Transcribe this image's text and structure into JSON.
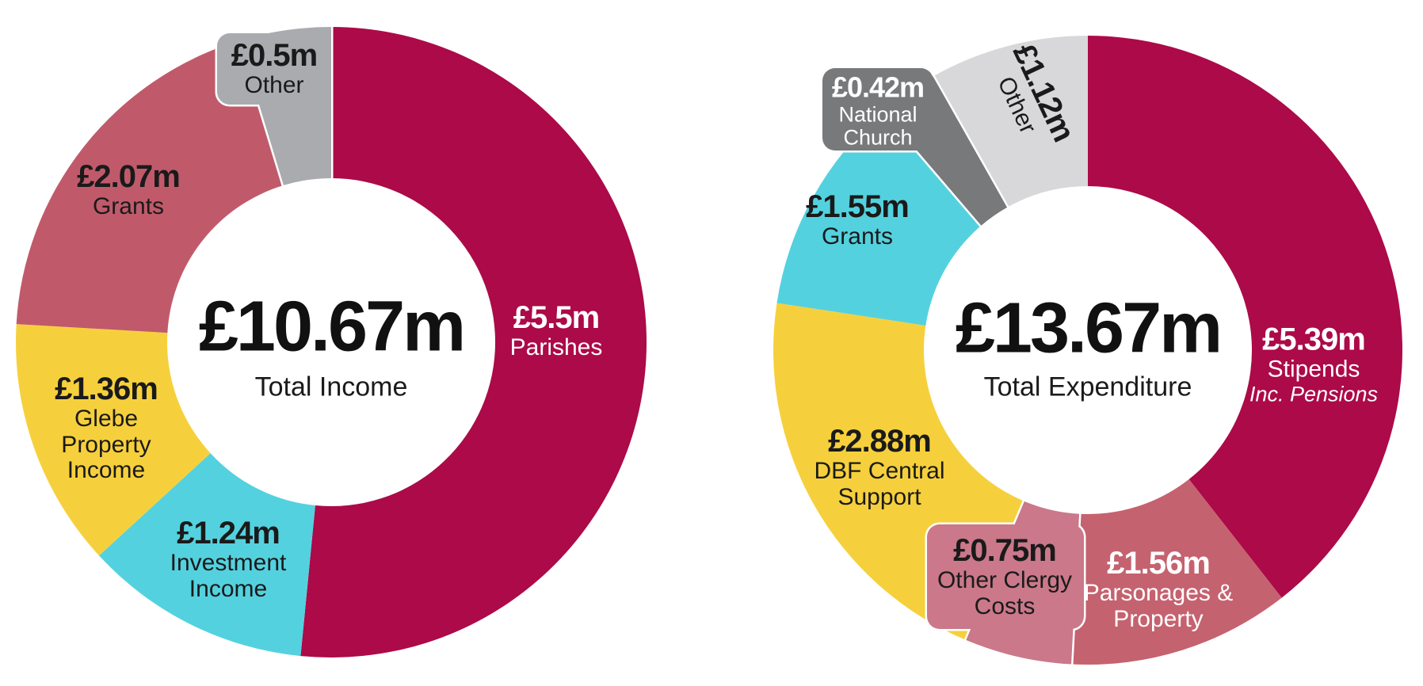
{
  "page": {
    "background": "#FFFFFF"
  },
  "colors": {
    "crimson": "#AC0A48",
    "rose": "#C05A6A",
    "parsonages_rose": "#C5626F",
    "clergy_pink": "#CA788A",
    "yellow": "#F6D03C",
    "cyan": "#54D1DE",
    "gray_medium": "#A9ABAE",
    "gray_dark": "#77797B",
    "gray_light": "#D8D8DA",
    "text_dark": "#1A1A1A",
    "white": "#FFFFFF"
  },
  "chart_data": [
    {
      "type": "pie",
      "subtype": "donut",
      "id": "income-donut",
      "title": "Total Income",
      "center_value": "£10.67m",
      "total": 10.67,
      "units": "£m",
      "legend_position": "on-segment",
      "segments": [
        {
          "label": "Parishes",
          "value": 5.5,
          "display": "£5.5m",
          "color": "#AC0A48",
          "label_color": "#FFFFFF",
          "callout": false,
          "sublines": [
            "Parishes"
          ]
        },
        {
          "label": "Investment Income",
          "value": 1.24,
          "display": "£1.24m",
          "color": "#54D1DE",
          "label_color": "#1A1A1A",
          "callout": false,
          "sublines": [
            "Investment",
            "Income"
          ]
        },
        {
          "label": "Glebe Property Income",
          "value": 1.36,
          "display": "£1.36m",
          "color": "#F6D03C",
          "label_color": "#1A1A1A",
          "callout": false,
          "sublines": [
            "Glebe",
            "Property",
            "Income"
          ]
        },
        {
          "label": "Grants",
          "value": 2.07,
          "display": "£2.07m",
          "color": "#C05A6A",
          "label_color": "#1A1A1A",
          "callout": false,
          "sublines": [
            "Grants"
          ]
        },
        {
          "label": "Other",
          "value": 0.5,
          "display": "£0.5m",
          "color": "#A9ABAE",
          "label_color": "#1A1A1A",
          "callout": true,
          "sublines": [
            "Other"
          ]
        }
      ]
    },
    {
      "type": "pie",
      "subtype": "donut",
      "id": "expenditure-donut",
      "title": "Total Expenditure",
      "center_value": "£13.67m",
      "total": 13.67,
      "units": "£m",
      "legend_position": "on-segment",
      "segments": [
        {
          "label": "Stipends",
          "value": 5.39,
          "display": "£5.39m",
          "color": "#AC0A48",
          "label_color": "#FFFFFF",
          "callout": false,
          "sublines": [
            "Stipends"
          ],
          "italic_subline": "Inc. Pensions"
        },
        {
          "label": "Parsonages & Property",
          "value": 1.56,
          "display": "£1.56m",
          "color": "#C5626F",
          "label_color": "#FFFFFF",
          "callout": false,
          "sublines": [
            "Parsonages &",
            "Property"
          ]
        },
        {
          "label": "Other Clergy Costs",
          "value": 0.75,
          "display": "£0.75m",
          "color": "#CA788A",
          "label_color": "#1A1A1A",
          "callout": true,
          "sublines": [
            "Other Clergy",
            "Costs"
          ]
        },
        {
          "label": "DBF Central Support",
          "value": 2.88,
          "display": "£2.88m",
          "color": "#F6D03C",
          "label_color": "#1A1A1A",
          "callout": false,
          "sublines": [
            "DBF Central",
            "Support"
          ]
        },
        {
          "label": "Grants",
          "value": 1.55,
          "display": "£1.55m",
          "color": "#54D1DE",
          "label_color": "#1A1A1A",
          "callout": false,
          "sublines": [
            "Grants"
          ]
        },
        {
          "label": "National Church",
          "value": 0.42,
          "display": "£0.42m",
          "color": "#77797B",
          "label_color": "#FFFFFF",
          "callout": true,
          "sublines": [
            "National",
            "Church"
          ]
        },
        {
          "label": "Other",
          "value": 1.12,
          "display": "£1.12m",
          "color": "#D8D8DA",
          "label_color": "#1A1A1A",
          "callout": false,
          "rotated": true,
          "sublines": [
            "Other"
          ]
        }
      ]
    }
  ]
}
